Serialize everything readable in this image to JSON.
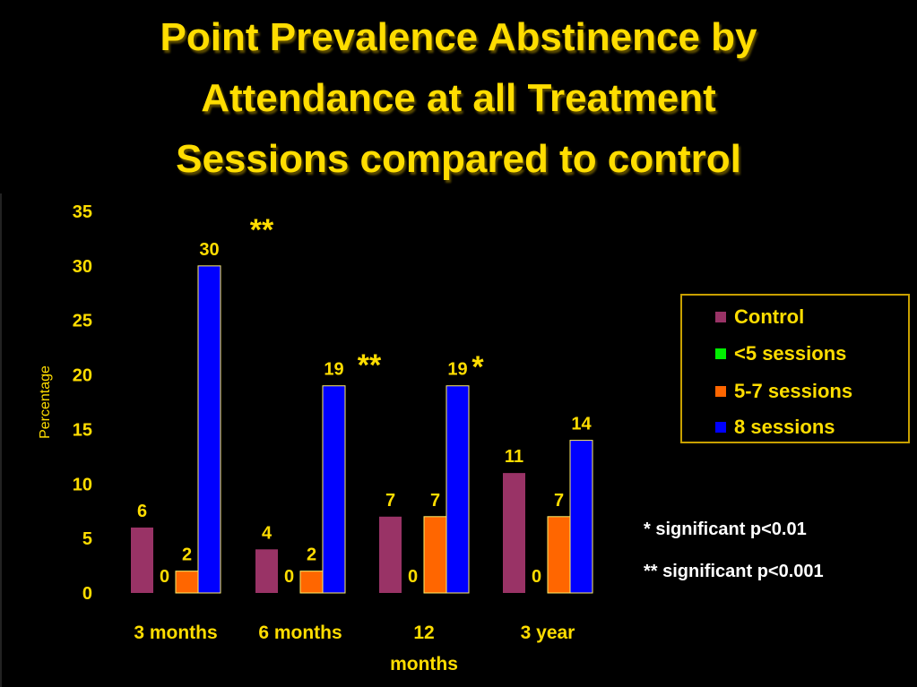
{
  "title_lines": [
    "Point Prevalence Abstinence by",
    "Attendance at all Treatment",
    "Sessions compared to control"
  ],
  "colors": {
    "text": "#ffdd00",
    "background": "#000000",
    "axis": "#c8a000",
    "bar_outline": "#ffee66"
  },
  "chart_data": {
    "type": "bar",
    "categories": [
      [
        "3 months"
      ],
      [
        "6 months"
      ],
      [
        "12",
        "months"
      ],
      [
        "3 year"
      ]
    ],
    "ylabel": "Percentage",
    "ylim": [
      0,
      35
    ],
    "yticks": [
      0,
      5,
      10,
      15,
      20,
      25,
      30,
      35
    ],
    "grid": false,
    "legend_position": "right",
    "series": [
      {
        "name": "Control",
        "color": "#993366",
        "values": [
          6,
          4,
          7,
          11
        ]
      },
      {
        "name": "<5 sessions",
        "color": "#00ee00",
        "values": [
          0,
          0,
          0,
          0
        ]
      },
      {
        "name": "5-7 sessions",
        "color": "#ff6600",
        "values": [
          2,
          2,
          7,
          7
        ]
      },
      {
        "name": "8 sessions",
        "color": "#0000ff",
        "values": [
          30,
          19,
          19,
          14
        ]
      }
    ],
    "annotations": [
      "**",
      "**",
      "*"
    ]
  },
  "notes": [
    "* significant p<0.01",
    "** significant p<0.001"
  ]
}
